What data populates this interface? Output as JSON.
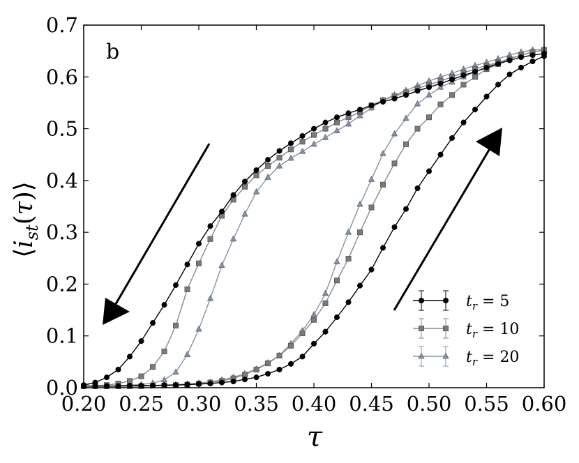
{
  "chart_data": {
    "type": "line",
    "panel_label": "b",
    "xlabel": "τ",
    "ylabel": "⟨i_st(τ)⟩",
    "xlim": [
      0.2,
      0.6
    ],
    "ylim": [
      0.0,
      0.7
    ],
    "xticks": [
      "0.20",
      "0.25",
      "0.30",
      "0.35",
      "0.40",
      "0.45",
      "0.50",
      "0.55",
      "0.60"
    ],
    "yticks": [
      "0.0",
      "0.1",
      "0.2",
      "0.3",
      "0.4",
      "0.5",
      "0.6",
      "0.7"
    ],
    "grid": false,
    "legend_position": "lower-right",
    "x": [
      0.2,
      0.21,
      0.22,
      0.23,
      0.24,
      0.25,
      0.26,
      0.27,
      0.28,
      0.29,
      0.3,
      0.31,
      0.32,
      0.33,
      0.34,
      0.35,
      0.36,
      0.37,
      0.38,
      0.39,
      0.4,
      0.41,
      0.42,
      0.43,
      0.44,
      0.45,
      0.46,
      0.47,
      0.48,
      0.49,
      0.5,
      0.51,
      0.52,
      0.53,
      0.54,
      0.55,
      0.56,
      0.57,
      0.58,
      0.59,
      0.6
    ],
    "series": [
      {
        "name": "t_r = 5",
        "legend_main": "t",
        "legend_sub": "r",
        "legend_rest": " = 5",
        "color": "#000000",
        "marker_fill": "#000000",
        "marker": "circle",
        "down": [
          0.005,
          0.01,
          0.02,
          0.035,
          0.06,
          0.09,
          0.125,
          0.16,
          0.198,
          0.238,
          0.278,
          0.312,
          0.34,
          0.372,
          0.398,
          0.42,
          0.44,
          0.457,
          0.472,
          0.486,
          0.5,
          0.512,
          0.522,
          0.53,
          0.537,
          0.545,
          0.552,
          0.558,
          0.565,
          0.573,
          0.58,
          0.587,
          0.595,
          0.603,
          0.61,
          0.618,
          0.625,
          0.632,
          0.638,
          0.642,
          0.645
        ],
        "up": [
          0.003,
          0.003,
          0.003,
          0.003,
          0.004,
          0.004,
          0.004,
          0.005,
          0.005,
          0.006,
          0.007,
          0.008,
          0.01,
          0.012,
          0.016,
          0.02,
          0.027,
          0.035,
          0.046,
          0.06,
          0.085,
          0.108,
          0.136,
          0.165,
          0.197,
          0.228,
          0.27,
          0.31,
          0.345,
          0.385,
          0.418,
          0.45,
          0.482,
          0.512,
          0.537,
          0.562,
          0.585,
          0.605,
          0.618,
          0.63,
          0.64
        ]
      },
      {
        "name": "t_r = 10",
        "legend_main": "t",
        "legend_sub": "r",
        "legend_rest": " = 10",
        "color": "#888888",
        "marker_fill": "#7a7a7a",
        "marker": "square",
        "down": [
          0.003,
          0.004,
          0.005,
          0.008,
          0.013,
          0.022,
          0.04,
          0.07,
          0.12,
          0.19,
          0.24,
          0.287,
          0.332,
          0.363,
          0.388,
          0.41,
          0.428,
          0.444,
          0.46,
          0.475,
          0.488,
          0.5,
          0.512,
          0.522,
          0.532,
          0.545,
          0.555,
          0.563,
          0.57,
          0.578,
          0.585,
          0.592,
          0.6,
          0.608,
          0.615,
          0.622,
          0.628,
          0.635,
          0.642,
          0.648,
          0.652
        ],
        "up": [
          0.003,
          0.003,
          0.003,
          0.003,
          0.003,
          0.003,
          0.004,
          0.004,
          0.005,
          0.006,
          0.008,
          0.01,
          0.013,
          0.018,
          0.025,
          0.035,
          0.047,
          0.062,
          0.081,
          0.105,
          0.131,
          0.163,
          0.207,
          0.249,
          0.3,
          0.348,
          0.392,
          0.433,
          0.47,
          0.5,
          0.522,
          0.547,
          0.565,
          0.585,
          0.6,
          0.615,
          0.625,
          0.635,
          0.642,
          0.648,
          0.652
        ]
      },
      {
        "name": "t_r = 20",
        "legend_main": "t",
        "legend_sub": "r",
        "legend_rest": " = 20",
        "color": "#8793a3",
        "marker_fill": "#8793a3",
        "marker": "triangle",
        "down": [
          0.003,
          0.003,
          0.003,
          0.004,
          0.005,
          0.006,
          0.009,
          0.015,
          0.03,
          0.064,
          0.113,
          0.172,
          0.236,
          0.287,
          0.335,
          0.378,
          0.406,
          0.428,
          0.443,
          0.456,
          0.47,
          0.483,
          0.496,
          0.509,
          0.525,
          0.54,
          0.555,
          0.565,
          0.574,
          0.583,
          0.592,
          0.6,
          0.607,
          0.615,
          0.622,
          0.628,
          0.635,
          0.642,
          0.648,
          0.652,
          0.654
        ],
        "up": [
          0.003,
          0.003,
          0.003,
          0.003,
          0.003,
          0.004,
          0.004,
          0.005,
          0.006,
          0.007,
          0.009,
          0.011,
          0.015,
          0.02,
          0.027,
          0.036,
          0.048,
          0.062,
          0.085,
          0.11,
          0.141,
          0.182,
          0.243,
          0.3,
          0.354,
          0.402,
          0.452,
          0.49,
          0.52,
          0.548,
          0.565,
          0.58,
          0.59,
          0.6,
          0.61,
          0.618,
          0.628,
          0.635,
          0.642,
          0.648,
          0.652
        ]
      }
    ]
  }
}
